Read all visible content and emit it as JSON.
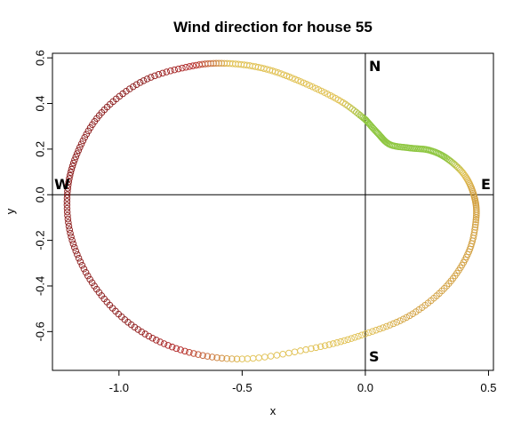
{
  "chart_data": {
    "type": "scatter",
    "title": "Wind direction for house 55",
    "xlabel": "x",
    "ylabel": "y",
    "xlim": [
      -1.27,
      0.52
    ],
    "ylim": [
      -0.77,
      0.62
    ],
    "x_ticks": [
      -1.0,
      -0.5,
      0.0,
      0.5
    ],
    "x_tick_labels": [
      "-1.0",
      "-0.5",
      "0.0",
      "0.5"
    ],
    "y_ticks": [
      -0.6,
      -0.4,
      -0.2,
      0.0,
      0.2,
      0.4,
      0.6
    ],
    "y_tick_labels": [
      "-0.6",
      "-0.4",
      "-0.2",
      "0.0",
      "0.2",
      "0.4",
      "0.6"
    ],
    "grid": false,
    "reference_lines": {
      "x": 0,
      "y": 0
    },
    "compass_labels": {
      "north": "N",
      "south": "S",
      "east": "E",
      "west": "W"
    },
    "marker": "open-circle",
    "color_scale": [
      "#8b1a1a",
      "#b22222",
      "#d2a040",
      "#e0c050",
      "#8dc63f"
    ],
    "curve_anchor_points": [
      {
        "x": 0.0,
        "y": 0.33
      },
      {
        "x": 0.05,
        "y": 0.27
      },
      {
        "x": 0.1,
        "y": 0.22
      },
      {
        "x": 0.18,
        "y": 0.205
      },
      {
        "x": 0.26,
        "y": 0.195
      },
      {
        "x": 0.33,
        "y": 0.16
      },
      {
        "x": 0.4,
        "y": 0.09
      },
      {
        "x": 0.44,
        "y": 0.0
      },
      {
        "x": 0.45,
        "y": -0.1
      },
      {
        "x": 0.42,
        "y": -0.25
      },
      {
        "x": 0.33,
        "y": -0.4
      },
      {
        "x": 0.18,
        "y": -0.53
      },
      {
        "x": 0.0,
        "y": -0.61
      },
      {
        "x": -0.2,
        "y": -0.67
      },
      {
        "x": -0.5,
        "y": -0.72
      },
      {
        "x": -0.75,
        "y": -0.68
      },
      {
        "x": -0.95,
        "y": -0.57
      },
      {
        "x": -1.1,
        "y": -0.4
      },
      {
        "x": -1.19,
        "y": -0.2
      },
      {
        "x": -1.21,
        "y": 0.0
      },
      {
        "x": -1.17,
        "y": 0.18
      },
      {
        "x": -1.07,
        "y": 0.36
      },
      {
        "x": -0.9,
        "y": 0.5
      },
      {
        "x": -0.7,
        "y": 0.565
      },
      {
        "x": -0.55,
        "y": 0.575
      },
      {
        "x": -0.4,
        "y": 0.55
      },
      {
        "x": -0.25,
        "y": 0.49
      },
      {
        "x": -0.1,
        "y": 0.41
      },
      {
        "x": 0.0,
        "y": 0.33
      }
    ],
    "point_color_index": [
      4,
      4,
      4,
      4,
      4,
      4,
      3,
      2,
      2,
      2,
      2,
      2,
      3,
      3,
      3,
      1,
      0,
      0,
      0,
      0,
      0,
      0,
      0,
      1,
      3,
      3,
      3,
      3,
      4
    ]
  }
}
